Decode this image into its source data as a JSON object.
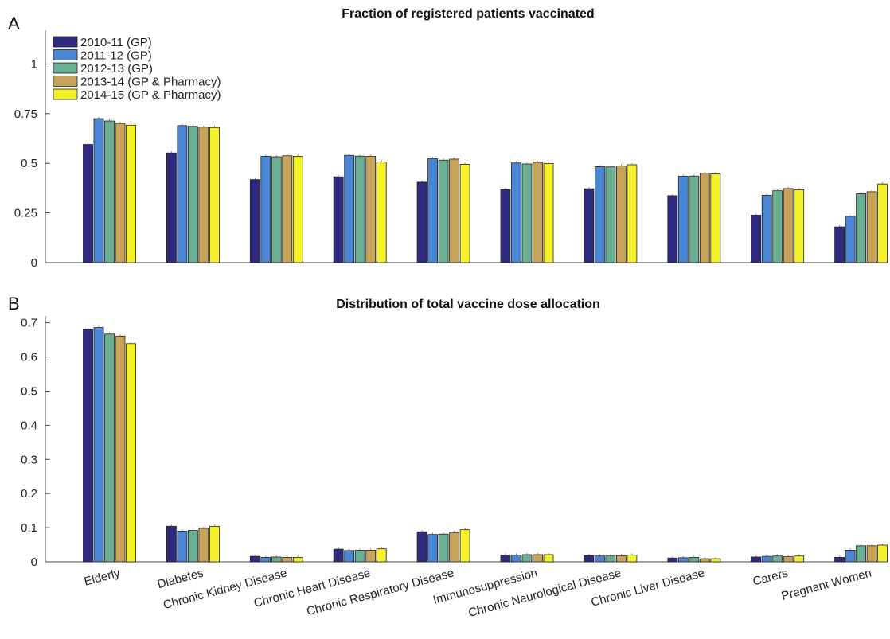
{
  "chart_data": [
    {
      "panel_label": "A",
      "type": "bar",
      "title": "Fraction of registered patients vaccinated",
      "categories": [
        "Elderly",
        "Diabetes",
        "Chronic Kidney Disease",
        "Chronic Heart Disease",
        "Chronic Respiratory Disease",
        "Immunosuppression",
        "Chronic Neurological Disease",
        "Chronic Liver Disease",
        "Carers",
        "Pregnant Women"
      ],
      "yticks": [
        "0",
        "0.25",
        "0.5",
        "0.75",
        "1"
      ],
      "ylim": [
        0,
        1.17
      ],
      "legend_position": "top-left",
      "series": [
        {
          "name": "2010-11 (GP)",
          "color": "#2e2a80",
          "values": [
            0.595,
            0.552,
            0.418,
            0.432,
            0.405,
            0.368,
            0.372,
            0.337,
            0.239,
            0.18
          ]
        },
        {
          "name": "2011-12 (GP)",
          "color": "#4a86d4",
          "values": [
            0.725,
            0.69,
            0.535,
            0.54,
            0.523,
            0.502,
            0.483,
            0.435,
            0.339,
            0.233
          ]
        },
        {
          "name": "2012-13 (GP)",
          "color": "#6aae94",
          "values": [
            0.713,
            0.686,
            0.533,
            0.536,
            0.516,
            0.497,
            0.482,
            0.436,
            0.362,
            0.347
          ]
        },
        {
          "name": "2013-14 (GP & Pharmacy)",
          "color": "#c5a35a",
          "values": [
            0.701,
            0.682,
            0.538,
            0.535,
            0.521,
            0.505,
            0.487,
            0.45,
            0.373,
            0.357
          ]
        },
        {
          "name": "2014-15 (GP & Pharmacy)",
          "color": "#f4f12a",
          "values": [
            0.692,
            0.68,
            0.535,
            0.507,
            0.495,
            0.499,
            0.493,
            0.447,
            0.367,
            0.396
          ]
        }
      ]
    },
    {
      "panel_label": "B",
      "type": "bar",
      "title": "Distribution of total vaccine dose allocation",
      "categories": [
        "Elderly",
        "Diabetes",
        "Chronic Kidney Disease",
        "Chronic Heart Disease",
        "Chronic Respiratory Disease",
        "Immunosuppression",
        "Chronic Neurological Disease",
        "Chronic Liver Disease",
        "Carers",
        "Pregnant Women"
      ],
      "yticks": [
        "0",
        "0.1",
        "0.2",
        "0.3",
        "0.4",
        "0.5",
        "0.6",
        "0.7"
      ],
      "ylim": [
        0,
        0.72
      ],
      "series": [
        {
          "name": "2010-11 (GP)",
          "color": "#2e2a80",
          "values": [
            0.68,
            0.104,
            0.016,
            0.037,
            0.088,
            0.02,
            0.018,
            0.011,
            0.014,
            0.013
          ]
        },
        {
          "name": "2011-12 (GP)",
          "color": "#4a86d4",
          "values": [
            0.686,
            0.09,
            0.013,
            0.033,
            0.08,
            0.02,
            0.017,
            0.012,
            0.016,
            0.034
          ]
        },
        {
          "name": "2012-13 (GP)",
          "color": "#6aae94",
          "values": [
            0.667,
            0.092,
            0.014,
            0.034,
            0.081,
            0.021,
            0.017,
            0.013,
            0.017,
            0.047
          ]
        },
        {
          "name": "2013-14 (GP & Pharmacy)",
          "color": "#c5a35a",
          "values": [
            0.661,
            0.098,
            0.013,
            0.034,
            0.086,
            0.021,
            0.018,
            0.009,
            0.015,
            0.047
          ]
        },
        {
          "name": "2014-15 (GP & Pharmacy)",
          "color": "#f4f12a",
          "values": [
            0.639,
            0.104,
            0.013,
            0.038,
            0.094,
            0.021,
            0.02,
            0.009,
            0.017,
            0.049
          ]
        }
      ]
    }
  ]
}
